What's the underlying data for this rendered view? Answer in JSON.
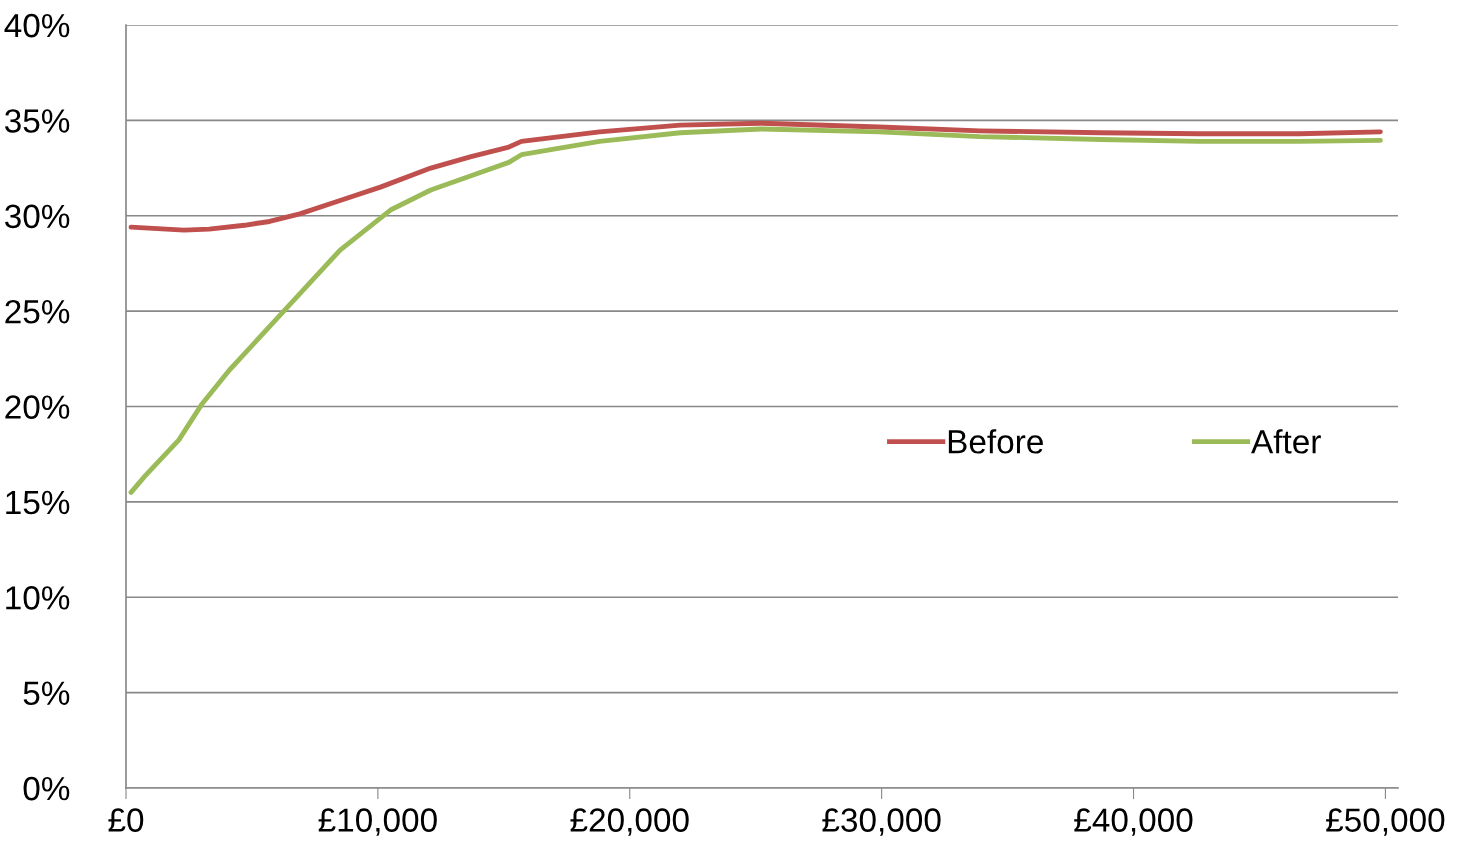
{
  "chart_data": {
    "type": "line",
    "xlim": [
      0,
      50500
    ],
    "ylim": [
      0,
      40
    ],
    "xticks": [
      {
        "value": 0,
        "label": "£0"
      },
      {
        "value": 10000,
        "label": "£10,000"
      },
      {
        "value": 20000,
        "label": "£20,000"
      },
      {
        "value": 30000,
        "label": "£30,000"
      },
      {
        "value": 40000,
        "label": "£40,000"
      },
      {
        "value": 50000,
        "label": "£50,000"
      }
    ],
    "yticks": [
      {
        "value": 0,
        "label": "0%"
      },
      {
        "value": 5,
        "label": "5%"
      },
      {
        "value": 10,
        "label": "10%"
      },
      {
        "value": 15,
        "label": "15%"
      },
      {
        "value": 20,
        "label": "20%"
      },
      {
        "value": 25,
        "label": "25%"
      },
      {
        "value": 30,
        "label": "30%"
      },
      {
        "value": 35,
        "label": "35%"
      },
      {
        "value": 40,
        "label": "40%"
      }
    ],
    "grid": "y",
    "legend": "right",
    "marker": "none",
    "line_style": "solid",
    "series": [
      {
        "name": "Before",
        "color": "#c0504d",
        "x": [
          200,
          2300,
          3300,
          4700,
          5700,
          6900,
          8500,
          10100,
          12100,
          13700,
          15200,
          15700,
          18800,
          22000,
          25200,
          29900,
          33900,
          38700,
          42600,
          46600,
          49800
        ],
        "values": [
          29.4,
          29.25,
          29.3,
          29.5,
          29.7,
          30.1,
          30.8,
          31.5,
          32.5,
          33.1,
          33.6,
          33.9,
          34.4,
          34.75,
          34.85,
          34.65,
          34.45,
          34.35,
          34.3,
          34.3,
          34.4
        ]
      },
      {
        "name": "After",
        "color": "#9bbb59",
        "x": [
          200,
          750,
          2100,
          3000,
          4100,
          6300,
          8500,
          10500,
          12100,
          13700,
          15200,
          15700,
          18800,
          22000,
          25200,
          29900,
          33900,
          38700,
          42600,
          46600,
          49800
        ],
        "values": [
          15.5,
          16.35,
          18.25,
          20.1,
          21.9,
          25.05,
          28.2,
          30.3,
          31.35,
          32.1,
          32.8,
          33.2,
          33.9,
          34.35,
          34.55,
          34.4,
          34.15,
          34.0,
          33.9,
          33.9,
          33.95
        ]
      }
    ]
  }
}
